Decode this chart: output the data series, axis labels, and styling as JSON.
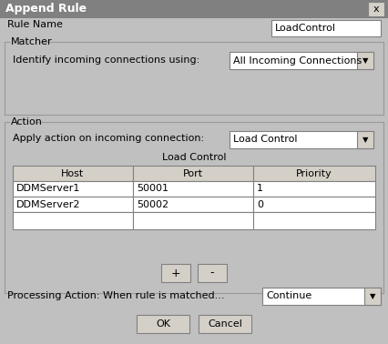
{
  "title": "Append Rule",
  "title_bar_color": "#808080",
  "dialog_bg": "#c0c0c0",
  "rule_name_label": "Rule Name",
  "rule_name_value": "LoadControl",
  "matcher_group_label": "Matcher",
  "matcher_label": "Identify incoming connections using:",
  "matcher_dropdown": "All Incoming Connections",
  "action_group_label": "Action",
  "action_label": "Apply action on incoming connection:",
  "action_dropdown": "Load Control",
  "table_title": "Load Control",
  "table_headers": [
    "Host",
    "Port",
    "Priority"
  ],
  "table_rows": [
    [
      "DDMServer1",
      "50001",
      "1"
    ],
    [
      "DDMServer2",
      "50002",
      "0"
    ]
  ],
  "btn_plus": "+",
  "btn_minus": "-",
  "processing_label": "Processing Action: When rule is matched...",
  "processing_dropdown": "Continue",
  "btn_ok": "OK",
  "btn_cancel": "Cancel",
  "close_x": "x",
  "border_color": "#808080",
  "line_color": "#999999",
  "figw": 4.26,
  "figh": 3.78,
  "dpi": 100
}
